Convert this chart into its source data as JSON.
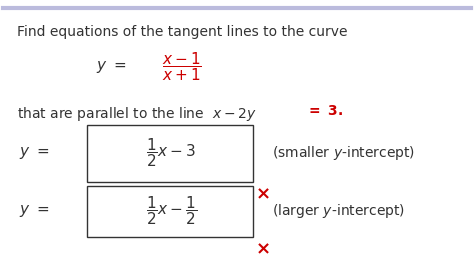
{
  "background_color": "#ffffff",
  "red_color": "#cc0000",
  "black_color": "#333333",
  "title_line": "Find equations of the tangent lines to the curve",
  "font_size_main": 10,
  "font_size_eq": 11
}
